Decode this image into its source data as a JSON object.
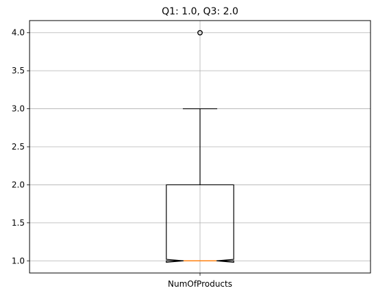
{
  "chart_data": {
    "type": "boxplot",
    "title": "Q1: 1.0, Q3: 2.0",
    "xlabel": "",
    "ylabel": "",
    "categories": [
      "NumOfProducts"
    ],
    "ylim": [
      0.84,
      4.16
    ],
    "yticks": [
      {
        "value": 1.0,
        "label": "1.0"
      },
      {
        "value": 1.5,
        "label": "1.5"
      },
      {
        "value": 2.0,
        "label": "2.0"
      },
      {
        "value": 2.5,
        "label": "2.5"
      },
      {
        "value": 3.0,
        "label": "3.0"
      },
      {
        "value": 3.5,
        "label": "3.5"
      },
      {
        "value": 4.0,
        "label": "4.0"
      }
    ],
    "grid": true,
    "notched": true,
    "box": {
      "q1": 1.0,
      "median": 1.0,
      "q3": 2.0,
      "whisker_low": 1.0,
      "whisker_high": 3.0,
      "notch_low": 0.98,
      "notch_high": 1.02,
      "outliers": [
        4.0
      ]
    },
    "colors": {
      "median": "#ff7f0e",
      "box": "#000000",
      "grid": "#b0b0b0"
    }
  }
}
